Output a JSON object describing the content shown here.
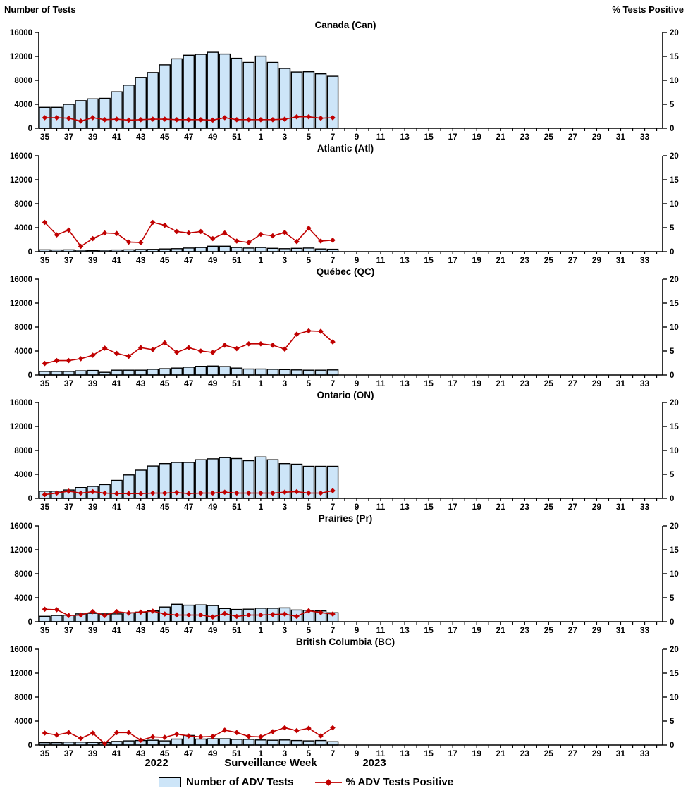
{
  "header": {
    "left_axis_title": "Number of Tests",
    "right_axis_title": "%  Tests Positive"
  },
  "footer": {
    "year_left": "2022",
    "x_axis_title": "Surveillance Week",
    "year_right": "2023"
  },
  "legend": {
    "bar_label": "Number of ADV Tests",
    "line_label": "% ADV Tests Positive"
  },
  "colors": {
    "bar_fill": "#CDE5F8",
    "bar_stroke": "#000000",
    "line": "#C00000",
    "axis": "#000000",
    "background": "#FFFFFF"
  },
  "x_axis": {
    "weeks": [
      35,
      36,
      37,
      38,
      39,
      40,
      41,
      42,
      43,
      44,
      45,
      46,
      47,
      48,
      49,
      50,
      51,
      52,
      1,
      2,
      3,
      4,
      5,
      6,
      7,
      8,
      9,
      10,
      11,
      12,
      13,
      14,
      15,
      16,
      17,
      18,
      19,
      20,
      21,
      22,
      23,
      24,
      25,
      26,
      27,
      28,
      29,
      30,
      31,
      32,
      33,
      34
    ],
    "labeled_weeks": [
      35,
      37,
      39,
      41,
      43,
      45,
      47,
      49,
      51,
      1,
      3,
      5,
      7,
      9,
      11,
      13,
      15,
      17,
      19,
      21,
      23,
      25,
      27,
      29,
      31,
      33
    ]
  },
  "y_axis_left": {
    "ticks": [
      0,
      4000,
      8000,
      12000,
      16000
    ],
    "max": 16000
  },
  "y_axis_right": {
    "ticks": [
      0,
      5,
      10,
      15,
      20
    ],
    "max": 20
  },
  "chart_data": [
    {
      "type": "bar+line",
      "title": "Canada (Can)",
      "code": "can",
      "categories": [
        "35",
        "36",
        "37",
        "38",
        "39",
        "40",
        "41",
        "42",
        "43",
        "44",
        "45",
        "46",
        "47",
        "48",
        "49",
        "50",
        "51",
        "52",
        "1",
        "2",
        "3",
        "4",
        "5",
        "6",
        "7"
      ],
      "series": [
        {
          "name": "Number of ADV Tests",
          "type": "bar",
          "axis": "left",
          "values": [
            3500,
            3500,
            4000,
            4600,
            4900,
            5000,
            6100,
            7200,
            8500,
            9300,
            10600,
            11600,
            12200,
            12350,
            12700,
            12400,
            11700,
            11000,
            12050,
            11000,
            10000,
            9400,
            9450,
            9100,
            8700
          ]
        },
        {
          "name": "% ADV Tests Positive",
          "type": "line",
          "axis": "right",
          "values": [
            2.2,
            2.2,
            2.1,
            1.5,
            2.2,
            1.8,
            1.9,
            1.7,
            1.8,
            1.9,
            1.9,
            1.8,
            1.8,
            1.8,
            1.7,
            2.2,
            1.8,
            1.8,
            1.8,
            1.8,
            1.9,
            2.4,
            2.4,
            2.1,
            2.2
          ]
        }
      ]
    },
    {
      "type": "bar+line",
      "title": "Atlantic (Atl)",
      "code": "atl",
      "categories": [
        "35",
        "36",
        "37",
        "38",
        "39",
        "40",
        "41",
        "42",
        "43",
        "44",
        "45",
        "46",
        "47",
        "48",
        "49",
        "50",
        "51",
        "52",
        "1",
        "2",
        "3",
        "4",
        "5",
        "6",
        "7"
      ],
      "series": [
        {
          "name": "Number of ADV Tests",
          "type": "bar",
          "axis": "left",
          "values": [
            300,
            280,
            300,
            250,
            200,
            250,
            280,
            300,
            350,
            380,
            450,
            500,
            600,
            700,
            900,
            900,
            700,
            600,
            700,
            550,
            500,
            550,
            600,
            450,
            400
          ]
        },
        {
          "name": "% ADV Tests Positive",
          "type": "line",
          "axis": "right",
          "values": [
            6.1,
            3.5,
            4.5,
            1.1,
            2.7,
            3.9,
            3.8,
            2.0,
            1.9,
            6.1,
            5.5,
            4.2,
            3.9,
            4.2,
            2.7,
            3.9,
            2.2,
            1.9,
            3.6,
            3.3,
            4.0,
            2.1,
            4.9,
            2.2,
            2.4
          ]
        }
      ]
    },
    {
      "type": "bar+line",
      "title": "Québec (QC)",
      "code": "qc",
      "categories": [
        "35",
        "36",
        "37",
        "38",
        "39",
        "40",
        "41",
        "42",
        "43",
        "44",
        "45",
        "46",
        "47",
        "48",
        "49",
        "50",
        "51",
        "52",
        "1",
        "2",
        "3",
        "4",
        "5",
        "6",
        "7"
      ],
      "series": [
        {
          "name": "Number of ADV Tests",
          "type": "bar",
          "axis": "left",
          "values": [
            600,
            600,
            600,
            700,
            750,
            450,
            800,
            800,
            800,
            950,
            1050,
            1150,
            1300,
            1450,
            1500,
            1400,
            1150,
            1000,
            1000,
            950,
            900,
            850,
            800,
            800,
            850
          ]
        },
        {
          "name": "% ADV Tests Positive",
          "type": "line",
          "axis": "right",
          "values": [
            2.4,
            3.0,
            3.0,
            3.4,
            4.1,
            5.6,
            4.5,
            3.9,
            5.7,
            5.3,
            6.7,
            4.7,
            5.7,
            5.0,
            4.7,
            6.2,
            5.5,
            6.5,
            6.5,
            6.2,
            5.4,
            8.5,
            9.2,
            9.1,
            6.9
          ]
        }
      ]
    },
    {
      "type": "bar+line",
      "title": "Ontario (ON)",
      "code": "on",
      "categories": [
        "35",
        "36",
        "37",
        "38",
        "39",
        "40",
        "41",
        "42",
        "43",
        "44",
        "45",
        "46",
        "47",
        "48",
        "49",
        "50",
        "51",
        "52",
        "1",
        "2",
        "3",
        "4",
        "5",
        "6",
        "7"
      ],
      "series": [
        {
          "name": "Number of ADV Tests",
          "type": "bar",
          "axis": "left",
          "values": [
            1200,
            1200,
            1400,
            1800,
            2000,
            2300,
            3000,
            3900,
            4700,
            5400,
            5800,
            6000,
            6000,
            6450,
            6600,
            6800,
            6650,
            6300,
            6900,
            6450,
            5800,
            5700,
            5350,
            5350,
            5350
          ]
        },
        {
          "name": "% ADV Tests Positive",
          "type": "line",
          "axis": "right",
          "values": [
            0.8,
            1.1,
            1.5,
            1.1,
            1.4,
            1.1,
            1.0,
            1.0,
            1.0,
            1.1,
            1.1,
            1.2,
            1.0,
            1.1,
            1.1,
            1.3,
            1.1,
            1.1,
            1.1,
            1.1,
            1.3,
            1.4,
            1.1,
            1.1,
            1.6
          ]
        }
      ]
    },
    {
      "type": "bar+line",
      "title": "Prairies (Pr)",
      "code": "pr",
      "categories": [
        "35",
        "36",
        "37",
        "38",
        "39",
        "40",
        "41",
        "42",
        "43",
        "44",
        "45",
        "46",
        "47",
        "48",
        "49",
        "50",
        "51",
        "52",
        "1",
        "2",
        "3",
        "4",
        "5",
        "6",
        "7"
      ],
      "series": [
        {
          "name": "Number of ADV Tests",
          "type": "bar",
          "axis": "left",
          "values": [
            900,
            1050,
            1100,
            1300,
            1400,
            1300,
            1300,
            1500,
            1600,
            1800,
            2450,
            2900,
            2750,
            2800,
            2700,
            2200,
            2050,
            2100,
            2250,
            2250,
            2300,
            1950,
            1900,
            1800,
            1500
          ]
        },
        {
          "name": "% ADV Tests Positive",
          "type": "line",
          "axis": "right",
          "values": [
            2.6,
            2.5,
            1.3,
            1.4,
            2.1,
            1.3,
            2.1,
            1.8,
            2.0,
            2.2,
            1.6,
            1.4,
            1.4,
            1.4,
            1.0,
            1.7,
            1.1,
            1.4,
            1.4,
            1.5,
            1.6,
            1.1,
            2.3,
            1.9,
            1.6
          ]
        }
      ]
    },
    {
      "type": "bar+line",
      "title": "British Columbia (BC)",
      "code": "bc",
      "categories": [
        "35",
        "36",
        "37",
        "38",
        "39",
        "40",
        "41",
        "42",
        "43",
        "44",
        "45",
        "46",
        "47",
        "48",
        "49",
        "50",
        "51",
        "52",
        "1",
        "2",
        "3",
        "4",
        "5",
        "6",
        "7"
      ],
      "series": [
        {
          "name": "Number of ADV Tests",
          "type": "bar",
          "axis": "left",
          "values": [
            400,
            400,
            500,
            500,
            450,
            400,
            600,
            700,
            750,
            800,
            700,
            1000,
            1600,
            1000,
            1050,
            1050,
            950,
            950,
            850,
            800,
            850,
            750,
            700,
            750,
            550
          ]
        },
        {
          "name": "% ADV Tests Positive",
          "type": "line",
          "axis": "right",
          "values": [
            2.5,
            2.1,
            2.6,
            1.4,
            2.5,
            0.3,
            2.6,
            2.6,
            1.0,
            1.7,
            1.6,
            2.3,
            1.9,
            1.7,
            1.8,
            3.1,
            2.6,
            1.8,
            1.7,
            2.8,
            3.6,
            3.0,
            3.5,
            1.9,
            3.6
          ]
        }
      ]
    }
  ]
}
